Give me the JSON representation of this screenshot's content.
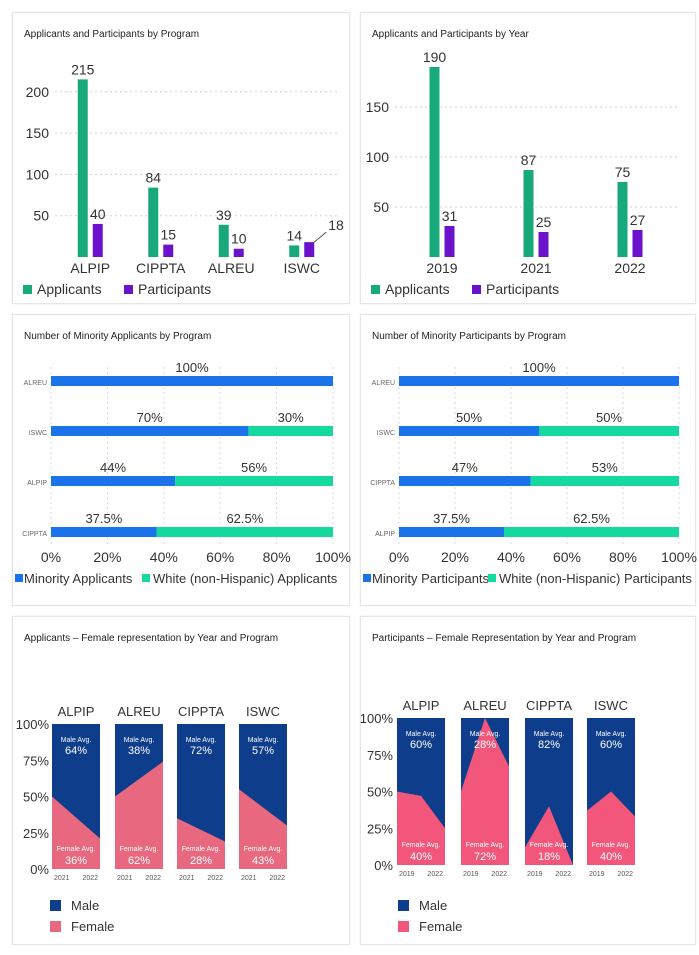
{
  "colors": {
    "applicants": "#17a97b",
    "participants": "#6a12cc",
    "minority": "#1a73e8",
    "white": "#16d9a0",
    "male": "#0e3d8c",
    "female_area": "#e8697f",
    "female_area_part": "#f2567a"
  },
  "panels": {
    "p1": {
      "title": "Applicants and Participants by Program"
    },
    "p2": {
      "title": "Applicants and Participants by Year"
    },
    "p3": {
      "title": "Number of Minority Applicants by Program"
    },
    "p4": {
      "title": "Number of Minority Participants by Program"
    },
    "p5": {
      "title": "Applicants – Female representation by Year and Program"
    },
    "p6": {
      "title": "Participants – Female Representation by Year and Program"
    }
  },
  "chart_data": [
    {
      "id": "p1",
      "type": "bar",
      "title": "Applicants and Participants by Program",
      "categories": [
        "ALPIP",
        "CIPPTA",
        "ALREU",
        "ISWC"
      ],
      "series": [
        {
          "name": "Applicants",
          "values": [
            215,
            84,
            39,
            14
          ]
        },
        {
          "name": "Participants",
          "values": [
            40,
            15,
            10,
            18
          ]
        }
      ],
      "yticks": [
        50,
        100,
        150,
        200
      ],
      "ylim": [
        0,
        230
      ],
      "legend": "bottom-left"
    },
    {
      "id": "p2",
      "type": "bar",
      "title": "Applicants and Participants by Year",
      "categories": [
        "2019",
        "2021",
        "2022"
      ],
      "series": [
        {
          "name": "Applicants",
          "values": [
            190,
            87,
            75
          ]
        },
        {
          "name": "Participants",
          "values": [
            31,
            25,
            27
          ]
        }
      ],
      "yticks": [
        50,
        100,
        150
      ],
      "ylim": [
        0,
        200
      ],
      "legend": "bottom-left"
    },
    {
      "id": "p3",
      "type": "bar",
      "orientation": "horizontal-stacked-100",
      "title": "Number of Minority Applicants by Program",
      "categories": [
        "ALREU",
        "ISWC",
        "ALPIP",
        "CIPPTA"
      ],
      "series": [
        {
          "name": "Minority Applicants",
          "values": [
            100,
            70,
            44,
            37.5
          ],
          "labels": [
            "100%",
            "70%",
            "44%",
            "37.5%"
          ]
        },
        {
          "name": "White (non-Hispanic) Applicants",
          "values": [
            0,
            30,
            56,
            62.5
          ],
          "labels": [
            "",
            "30%",
            "56%",
            "62.5%"
          ]
        }
      ],
      "xticks": [
        "0%",
        "20%",
        "40%",
        "60%",
        "80%",
        "100%"
      ],
      "legend": "bottom-left"
    },
    {
      "id": "p4",
      "type": "bar",
      "orientation": "horizontal-stacked-100",
      "title": "Number of Minority Participants by Program",
      "categories": [
        "ALREU",
        "ISWC",
        "CIPPTA",
        "ALPIP"
      ],
      "series": [
        {
          "name": "Minority Participants",
          "values": [
            100,
            50,
            47,
            37.5
          ],
          "labels": [
            "100%",
            "50%",
            "47%",
            "37.5%"
          ]
        },
        {
          "name": "White (non-Hispanic) Participants",
          "values": [
            0,
            50,
            53,
            62.5
          ],
          "labels": [
            "",
            "50%",
            "53%",
            "62.5%"
          ]
        }
      ],
      "xticks": [
        "0%",
        "20%",
        "40%",
        "60%",
        "80%",
        "100%"
      ],
      "legend": "bottom-left"
    },
    {
      "id": "p5",
      "type": "area",
      "title": "Applicants – Female representation by Year and Program",
      "yticks": [
        "100%",
        "75%",
        "50%",
        "25%",
        "0%"
      ],
      "programs": [
        {
          "name": "ALPIP",
          "female_pct": [
            50,
            21
          ],
          "male_label": "Male Avg.",
          "male_avg": "64%",
          "female_label": "Female Avg.",
          "female_avg": "36%",
          "years": [
            "2021",
            "2022"
          ]
        },
        {
          "name": "ALREU",
          "female_pct": [
            50,
            74
          ],
          "male_label": "Male Avg.",
          "male_avg": "38%",
          "female_label": "Female Avg.",
          "female_avg": "62%",
          "years": [
            "2021",
            "2022"
          ]
        },
        {
          "name": "CIPPTA",
          "female_pct": [
            35,
            19
          ],
          "male_label": "Male Avg.",
          "male_avg": "72%",
          "female_label": "Female Avg.",
          "female_avg": "28%",
          "years": [
            "2021",
            "2022"
          ]
        },
        {
          "name": "ISWC",
          "female_pct": [
            55,
            30
          ],
          "male_label": "Male Avg.",
          "male_avg": "57%",
          "female_label": "Female Avg.",
          "female_avg": "43%",
          "years": [
            "2021",
            "2022"
          ]
        }
      ],
      "legend": [
        {
          "name": "Male"
        },
        {
          "name": "Female"
        }
      ]
    },
    {
      "id": "p6",
      "type": "area",
      "title": "Participants – Female Representation by Year and Program",
      "yticks": [
        "100%",
        "75%",
        "50%",
        "25%",
        "0%"
      ],
      "programs": [
        {
          "name": "ALPIP",
          "female_pct": [
            50,
            47,
            25
          ],
          "male_label": "Male Avg.",
          "male_avg": "60%",
          "female_label": "Female Avg.",
          "female_avg": "40%",
          "years": [
            "2019",
            "2022"
          ]
        },
        {
          "name": "ALREU",
          "female_pct": [
            50,
            100,
            67
          ],
          "male_label": "Male Avg.",
          "male_avg": "28%",
          "female_label": "Female Avg.",
          "female_avg": "72%",
          "years": [
            "2019",
            "2022"
          ]
        },
        {
          "name": "CIPPTA",
          "female_pct": [
            12,
            40,
            0
          ],
          "male_label": "Male Avg.",
          "male_avg": "82%",
          "female_label": "Female Avg.",
          "female_avg": "18%",
          "years": [
            "2019",
            "2022"
          ]
        },
        {
          "name": "ISWC",
          "female_pct": [
            37,
            50,
            33
          ],
          "male_label": "Male Avg.",
          "male_avg": "60%",
          "female_label": "Female Avg.",
          "female_avg": "40%",
          "years": [
            "2019",
            "2022"
          ]
        }
      ],
      "legend": [
        {
          "name": "Male"
        },
        {
          "name": "Female"
        }
      ]
    }
  ]
}
